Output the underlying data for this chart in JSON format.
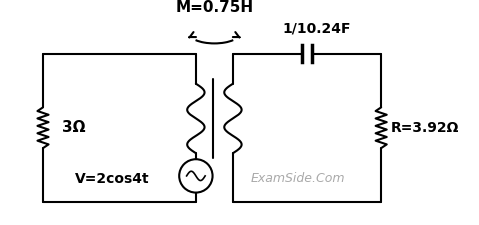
{
  "bg_color": "#ffffff",
  "line_color": "#000000",
  "text_color": "#000000",
  "label_color_examside": "#aaaaaa",
  "title": "M=0.75H",
  "cap_label": "1/10.24F",
  "res_left_label": "3Ω",
  "res_right_label": "R=3.92Ω",
  "volt_label": "V=2cos4t",
  "examside_label": "ExamSide.Com",
  "figsize": [
    4.79,
    2.25
  ],
  "dpi": 100
}
